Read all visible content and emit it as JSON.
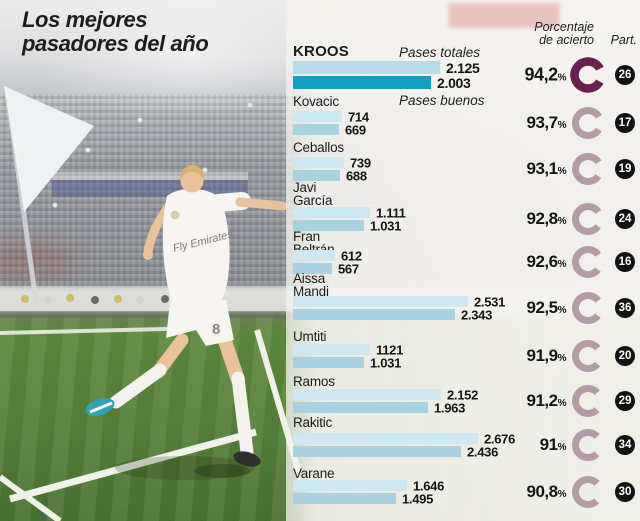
{
  "title": {
    "line1": "Los mejores",
    "line2": "pasadores del año"
  },
  "photo": {
    "jersey_sponsor": "Fly Emirates",
    "shorts_number": "8"
  },
  "percent_sign": "%",
  "colors": {
    "bar_total": "#cfe7f0",
    "bar_good": "#a8d2e2",
    "bar_total_highlight": "#b7dbe7",
    "bar_good_highlight": "#12a0bf",
    "ring": "#b49ba6",
    "ring_highlight": "#6b1f4e",
    "badge_bg": "#111111",
    "badge_text": "#ffffff"
  },
  "chart_data": {
    "type": "bar",
    "orientation": "horizontal",
    "title": "Los mejores pasadores del año",
    "series_totales_label": "Pases totales",
    "series_buenos_label": "Pases buenos",
    "columns": {
      "accuracy_line1": "Porcentaje",
      "accuracy_line2": "de acierto",
      "matches_header": "Part."
    },
    "legend_position": "inline-first-row",
    "players": [
      {
        "name": "Kroos",
        "name_lines": [
          "KROOS"
        ],
        "pases_totales": 2125,
        "pases_buenos": 2003,
        "totales_label": "2.125",
        "buenos_label": "2.003",
        "accuracy_pct": 94.2,
        "accuracy_label": "94,2",
        "matches": 26,
        "highlight": true
      },
      {
        "name": "Kovacic",
        "name_lines": [
          "Kovacic"
        ],
        "pases_totales": 714,
        "pases_buenos": 669,
        "totales_label": "714",
        "buenos_label": "669",
        "accuracy_pct": 93.7,
        "accuracy_label": "93,7",
        "matches": 17,
        "highlight": false
      },
      {
        "name": "Ceballos",
        "name_lines": [
          "Ceballos"
        ],
        "pases_totales": 739,
        "pases_buenos": 688,
        "totales_label": "739",
        "buenos_label": "688",
        "accuracy_pct": 93.1,
        "accuracy_label": "93,1",
        "matches": 19,
        "highlight": false
      },
      {
        "name": "Javi García",
        "name_lines": [
          "Javi",
          "García"
        ],
        "pases_totales": 1111,
        "pases_buenos": 1031,
        "totales_label": "1.111",
        "buenos_label": "1.031",
        "accuracy_pct": 92.8,
        "accuracy_label": "92,8",
        "matches": 24,
        "highlight": false
      },
      {
        "name": "Fran Beltrán",
        "name_lines": [
          "Fran",
          "Beltrán"
        ],
        "pases_totales": 612,
        "pases_buenos": 567,
        "totales_label": "612",
        "buenos_label": "567",
        "accuracy_pct": 92.6,
        "accuracy_label": "92,6",
        "matches": 16,
        "highlight": false
      },
      {
        "name": "Aissa Mandi",
        "name_lines": [
          "Aissa",
          "Mandi"
        ],
        "pases_totales": 2531,
        "pases_buenos": 2343,
        "totales_label": "2.531",
        "buenos_label": "2.343",
        "accuracy_pct": 92.5,
        "accuracy_label": "92,5",
        "matches": 36,
        "highlight": false
      },
      {
        "name": "Umtiti",
        "name_lines": [
          "Umtiti"
        ],
        "pases_totales": 1121,
        "pases_buenos": 1031,
        "totales_label": "1121",
        "buenos_label": "1.031",
        "accuracy_pct": 91.9,
        "accuracy_label": "91,9",
        "matches": 20,
        "highlight": false
      },
      {
        "name": "Ramos",
        "name_lines": [
          "Ramos"
        ],
        "pases_totales": 2152,
        "pases_buenos": 1963,
        "totales_label": "2.152",
        "buenos_label": "1.963",
        "accuracy_pct": 91.2,
        "accuracy_label": "91,2",
        "matches": 29,
        "highlight": false
      },
      {
        "name": "Rakitic",
        "name_lines": [
          "Rakitic"
        ],
        "pases_totales": 2676,
        "pases_buenos": 2436,
        "totales_label": "2.676",
        "buenos_label": "2.436",
        "accuracy_pct": 91.0,
        "accuracy_label": "91",
        "matches": 34,
        "highlight": false
      },
      {
        "name": "Varane",
        "name_lines": [
          "Varane"
        ],
        "pases_totales": 1646,
        "pases_buenos": 1495,
        "totales_label": "1.646",
        "buenos_label": "1.495",
        "accuracy_pct": 90.8,
        "accuracy_label": "90,8",
        "matches": 30,
        "highlight": false
      }
    ]
  }
}
